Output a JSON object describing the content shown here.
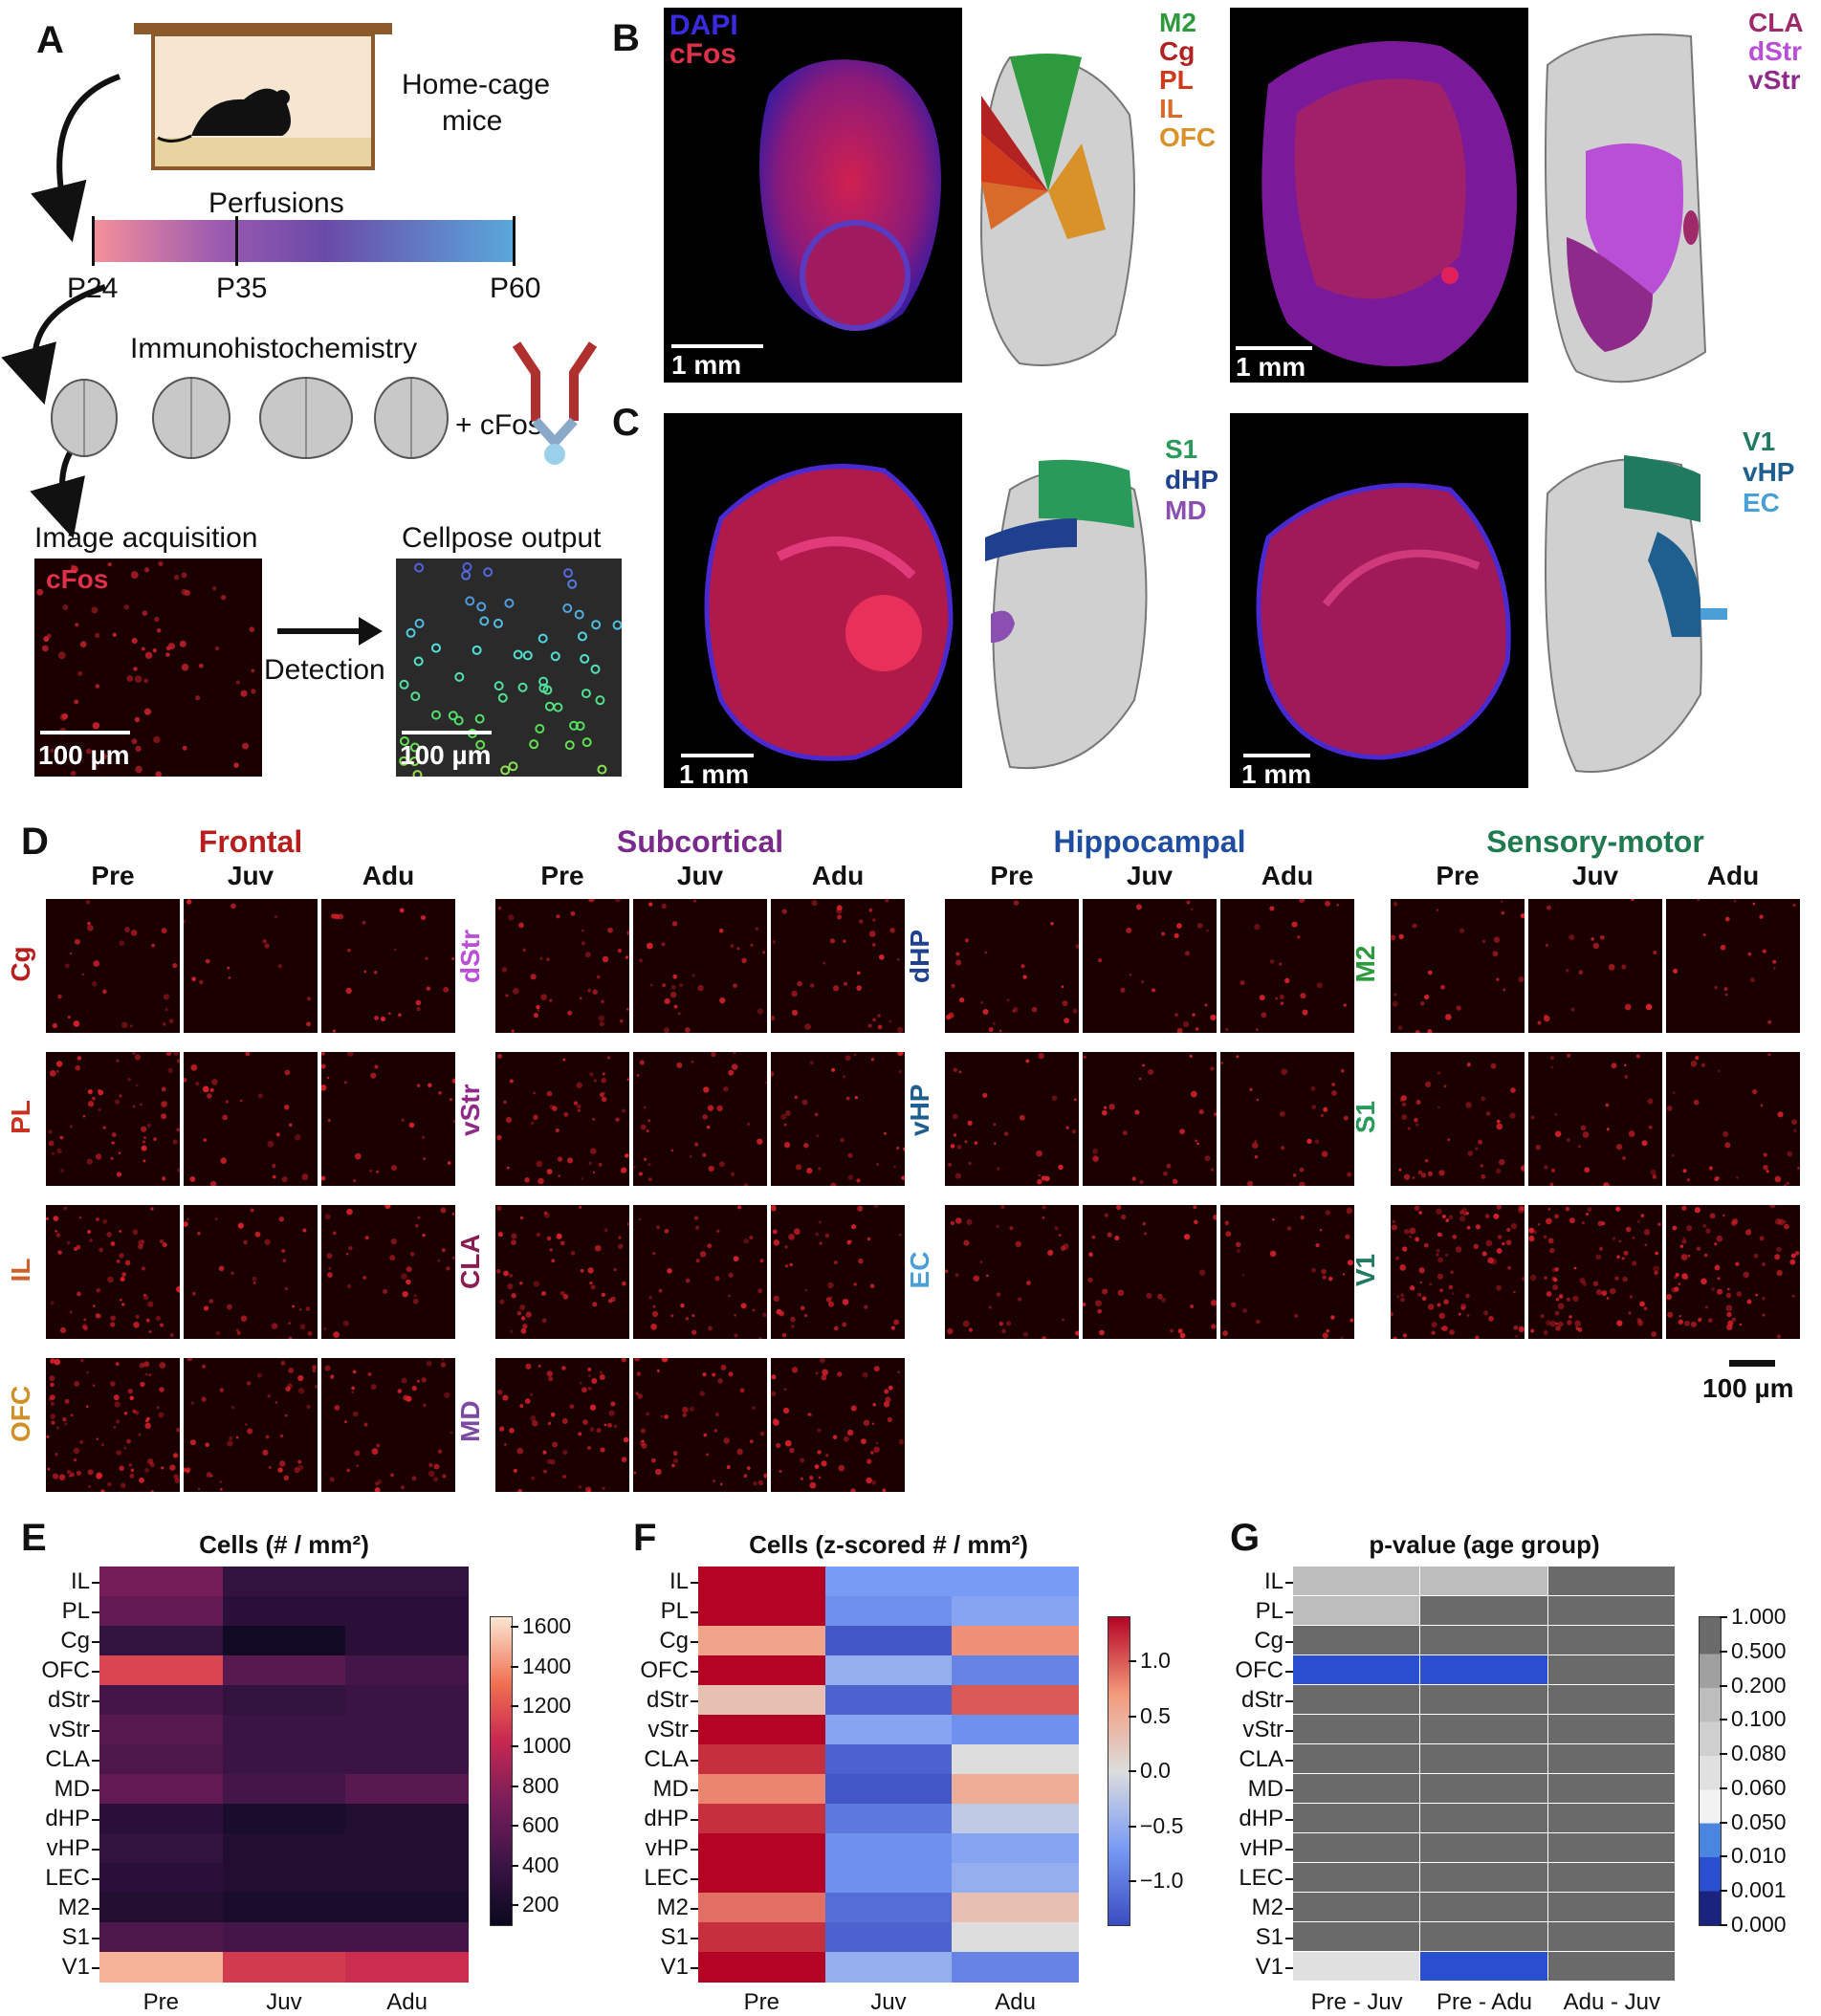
{
  "panelA": {
    "label": "A",
    "homecage": "Home-cage",
    "mice": "mice",
    "perfusions": "Perfusions",
    "ages": [
      "P24",
      "P35",
      "P60"
    ],
    "ihc": "Immunohistochemistry",
    "plus_cfos": "+ cFos",
    "image_acq": "Image acquisition",
    "cfos_overlay": "cFos",
    "detection": "Detection",
    "cellpose": "Cellpose output",
    "scale": "100 µm"
  },
  "panelB": {
    "label": "B",
    "stain1": "DAPI",
    "stain2": "cFos",
    "scale": "1 mm",
    "left_regions": [
      {
        "name": "M2",
        "color": "#2e9a3e"
      },
      {
        "name": "Cg",
        "color": "#b22222"
      },
      {
        "name": "PL",
        "color": "#d03a1a"
      },
      {
        "name": "IL",
        "color": "#d86a2a"
      },
      {
        "name": "OFC",
        "color": "#d9922a"
      }
    ],
    "right_regions": [
      {
        "name": "CLA",
        "color": "#9e2a6a"
      },
      {
        "name": "dStr",
        "color": "#b94fd6"
      },
      {
        "name": "vStr",
        "color": "#8e2b8a"
      }
    ]
  },
  "panelC": {
    "label": "C",
    "scale": "1 mm",
    "left_regions": [
      {
        "name": "S1",
        "color": "#2a9a5a"
      },
      {
        "name": "dHP",
        "color": "#1f3f8f"
      },
      {
        "name": "MD",
        "color": "#8a4fb0"
      }
    ],
    "right_regions": [
      {
        "name": "V1",
        "color": "#1f7a60"
      },
      {
        "name": "vHP",
        "color": "#1f5f8f"
      },
      {
        "name": "EC",
        "color": "#4a9fd6"
      }
    ]
  },
  "panelD": {
    "label": "D",
    "ages": [
      "Pre",
      "Juv",
      "Adu"
    ],
    "scale": "100 µm",
    "groups": [
      {
        "name": "Frontal",
        "color": "#b81e1e",
        "rows": [
          {
            "name": "Cg",
            "color": "#b81e1e",
            "density": [
              0.2,
              0.05,
              0.15
            ]
          },
          {
            "name": "PL",
            "color": "#c8321e",
            "density": [
              0.55,
              0.2,
              0.2
            ]
          },
          {
            "name": "IL",
            "color": "#d0602a",
            "density": [
              0.6,
              0.3,
              0.3
            ]
          },
          {
            "name": "OFC",
            "color": "#d0902a",
            "density": [
              0.9,
              0.45,
              0.4
            ]
          }
        ]
      },
      {
        "name": "Subcortical",
        "color": "#7a2a8a",
        "rows": [
          {
            "name": "dStr",
            "color": "#b94fd6",
            "density": [
              0.35,
              0.25,
              0.3
            ]
          },
          {
            "name": "vStr",
            "color": "#8e2b8a",
            "density": [
              0.45,
              0.3,
              0.3
            ]
          },
          {
            "name": "CLA",
            "color": "#8a1e52",
            "density": [
              0.5,
              0.35,
              0.4
            ]
          },
          {
            "name": "MD",
            "color": "#7a4ba0",
            "density": [
              0.6,
              0.45,
              0.55
            ]
          }
        ]
      },
      {
        "name": "Hippocampal",
        "color": "#1f4ea0",
        "rows": [
          {
            "name": "dHP",
            "color": "#1f3f8f",
            "density": [
              0.2,
              0.15,
              0.15
            ]
          },
          {
            "name": "vHP",
            "color": "#1f5f8f",
            "density": [
              0.25,
              0.2,
              0.2
            ]
          },
          {
            "name": "EC",
            "color": "#4a9fd6",
            "density": [
              0.3,
              0.25,
              0.25
            ]
          }
        ]
      },
      {
        "name": "Sensory-motor",
        "color": "#1f7a50",
        "rows": [
          {
            "name": "M2",
            "color": "#2e9a3e",
            "density": [
              0.2,
              0.1,
              0.1
            ]
          },
          {
            "name": "S1",
            "color": "#2a9a5a",
            "density": [
              0.35,
              0.25,
              0.25
            ]
          },
          {
            "name": "V1",
            "color": "#1f7a60",
            "density": [
              1.0,
              0.9,
              0.8
            ]
          }
        ]
      }
    ]
  },
  "chart_data": [
    {
      "panel": "E",
      "type": "heatmap",
      "title": "Cells (# / mm²)",
      "rows": [
        "IL",
        "PL",
        "Cg",
        "OFC",
        "dStr",
        "vStr",
        "CLA",
        "MD",
        "dHP",
        "vHP",
        "LEC",
        "M2",
        "S1",
        "V1"
      ],
      "columns": [
        "Pre",
        "Juv",
        "Adu"
      ],
      "values": [
        [
          700,
          350,
          350
        ],
        [
          600,
          300,
          300
        ],
        [
          350,
          150,
          300
        ],
        [
          1150,
          550,
          450
        ],
        [
          450,
          350,
          400
        ],
        [
          550,
          400,
          400
        ],
        [
          500,
          400,
          400
        ],
        [
          600,
          450,
          550
        ],
        [
          300,
          200,
          250
        ],
        [
          350,
          250,
          250
        ],
        [
          300,
          250,
          250
        ],
        [
          250,
          200,
          200
        ],
        [
          500,
          450,
          450
        ],
        [
          1500,
          1100,
          1050
        ]
      ],
      "colorbar_ticks": [
        200,
        400,
        600,
        800,
        1000,
        1200,
        1400,
        1600
      ],
      "range": [
        100,
        1650
      ]
    },
    {
      "panel": "F",
      "type": "heatmap",
      "title": "Cells (z-scored # / mm²)",
      "rows": [
        "IL",
        "PL",
        "Cg",
        "OFC",
        "dStr",
        "vStr",
        "CLA",
        "MD",
        "dHP",
        "vHP",
        "LEC",
        "M2",
        "S1",
        "V1"
      ],
      "columns": [
        "Pre",
        "Juv",
        "Adu"
      ],
      "values": [
        [
          1.4,
          -0.7,
          -0.7
        ],
        [
          1.4,
          -0.8,
          -0.6
        ],
        [
          0.6,
          -1.3,
          0.75
        ],
        [
          1.4,
          -0.5,
          -0.9
        ],
        [
          0.3,
          -1.2,
          1.0
        ],
        [
          1.4,
          -0.6,
          -0.8
        ],
        [
          1.2,
          -1.2,
          0.0
        ],
        [
          0.8,
          -1.3,
          0.5
        ],
        [
          1.2,
          -1.0,
          -0.2
        ],
        [
          1.4,
          -0.8,
          -0.6
        ],
        [
          1.4,
          -0.8,
          -0.5
        ],
        [
          0.9,
          -1.1,
          0.3
        ],
        [
          1.2,
          -1.2,
          0.0
        ],
        [
          1.4,
          -0.5,
          -0.9
        ]
      ],
      "colorbar_ticks": [
        1.0,
        0.5,
        0.0,
        -0.5,
        -1.0
      ],
      "range": [
        -1.4,
        1.4
      ]
    },
    {
      "panel": "G",
      "type": "heatmap",
      "title": "p-value (age group)",
      "rows": [
        "IL",
        "PL",
        "Cg",
        "OFC",
        "dStr",
        "vStr",
        "CLA",
        "MD",
        "dHP",
        "vHP",
        "LEC",
        "M2",
        "S1",
        "V1"
      ],
      "columns": [
        "Pre - Juv",
        "Pre - Adu",
        "Adu - Juv"
      ],
      "values": [
        [
          0.15,
          0.15,
          1.0
        ],
        [
          0.15,
          1.0,
          1.0
        ],
        [
          1.0,
          1.0,
          1.0
        ],
        [
          0.009,
          0.003,
          1.0
        ],
        [
          1.0,
          1.0,
          1.0
        ],
        [
          1.0,
          1.0,
          1.0
        ],
        [
          1.0,
          1.0,
          1.0
        ],
        [
          1.0,
          1.0,
          1.0
        ],
        [
          1.0,
          1.0,
          1.0
        ],
        [
          1.0,
          1.0,
          1.0
        ],
        [
          1.0,
          1.0,
          1.0
        ],
        [
          1.0,
          1.0,
          1.0
        ],
        [
          1.0,
          1.0,
          1.0
        ],
        [
          0.07,
          0.009,
          1.0
        ]
      ],
      "colorbar_ticks": [
        "1.000",
        "0.500",
        "0.200",
        "0.100",
        "0.080",
        "0.060",
        "0.050",
        "0.010",
        "0.001",
        "0.000"
      ]
    }
  ],
  "panelE": {
    "label": "E"
  },
  "panelF": {
    "label": "F"
  },
  "panelG": {
    "label": "G"
  }
}
